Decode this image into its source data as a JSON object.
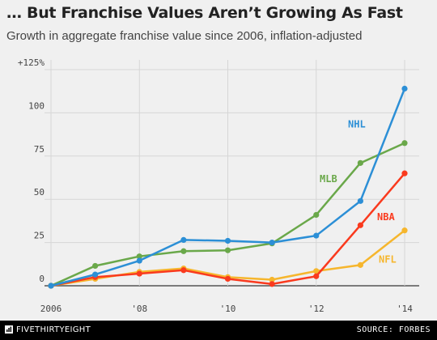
{
  "header": {
    "title": "… But Franchise Values Aren’t Growing As Fast",
    "subtitle": "Growth in aggregate franchise value since 2006, inflation-adjusted"
  },
  "footer": {
    "brand": "FIVETHIRTYEIGHT",
    "source": "SOURCE: FORBES"
  },
  "chart_data": {
    "type": "line",
    "x": [
      2006,
      2007,
      2008,
      2009,
      2010,
      2011,
      2012,
      2013,
      2014
    ],
    "xlim": [
      2006,
      2014
    ],
    "ylim": [
      0,
      125
    ],
    "x_ticks": [
      {
        "value": 2006,
        "label": "2006"
      },
      {
        "value": 2008,
        "label": "'08"
      },
      {
        "value": 2010,
        "label": "'10"
      },
      {
        "value": 2012,
        "label": "'12"
      },
      {
        "value": 2014,
        "label": "'14"
      }
    ],
    "y_ticks": [
      {
        "value": 0,
        "label": "0"
      },
      {
        "value": 25,
        "label": "25"
      },
      {
        "value": 50,
        "label": "50"
      },
      {
        "value": 75,
        "label": "75"
      },
      {
        "value": 100,
        "label": "100"
      },
      {
        "value": 125,
        "label": "+125%"
      }
    ],
    "grid": true,
    "series": [
      {
        "name": "NFL",
        "color": "#f6b62d",
        "values": [
          0,
          4,
          8,
          10,
          5,
          3.5,
          8.5,
          12,
          32
        ]
      },
      {
        "name": "NBA",
        "color": "#fa3a1e",
        "values": [
          0,
          5,
          7,
          9,
          4,
          1,
          5.5,
          35,
          65
        ]
      },
      {
        "name": "MLB",
        "color": "#6aa84a",
        "values": [
          0,
          11.5,
          17,
          20,
          20.5,
          24.5,
          41,
          71,
          82.5
        ]
      },
      {
        "name": "NHL",
        "color": "#2c8fd6",
        "values": [
          0,
          6.5,
          14.5,
          26.5,
          26,
          25,
          29,
          49,
          114
        ]
      }
    ]
  }
}
